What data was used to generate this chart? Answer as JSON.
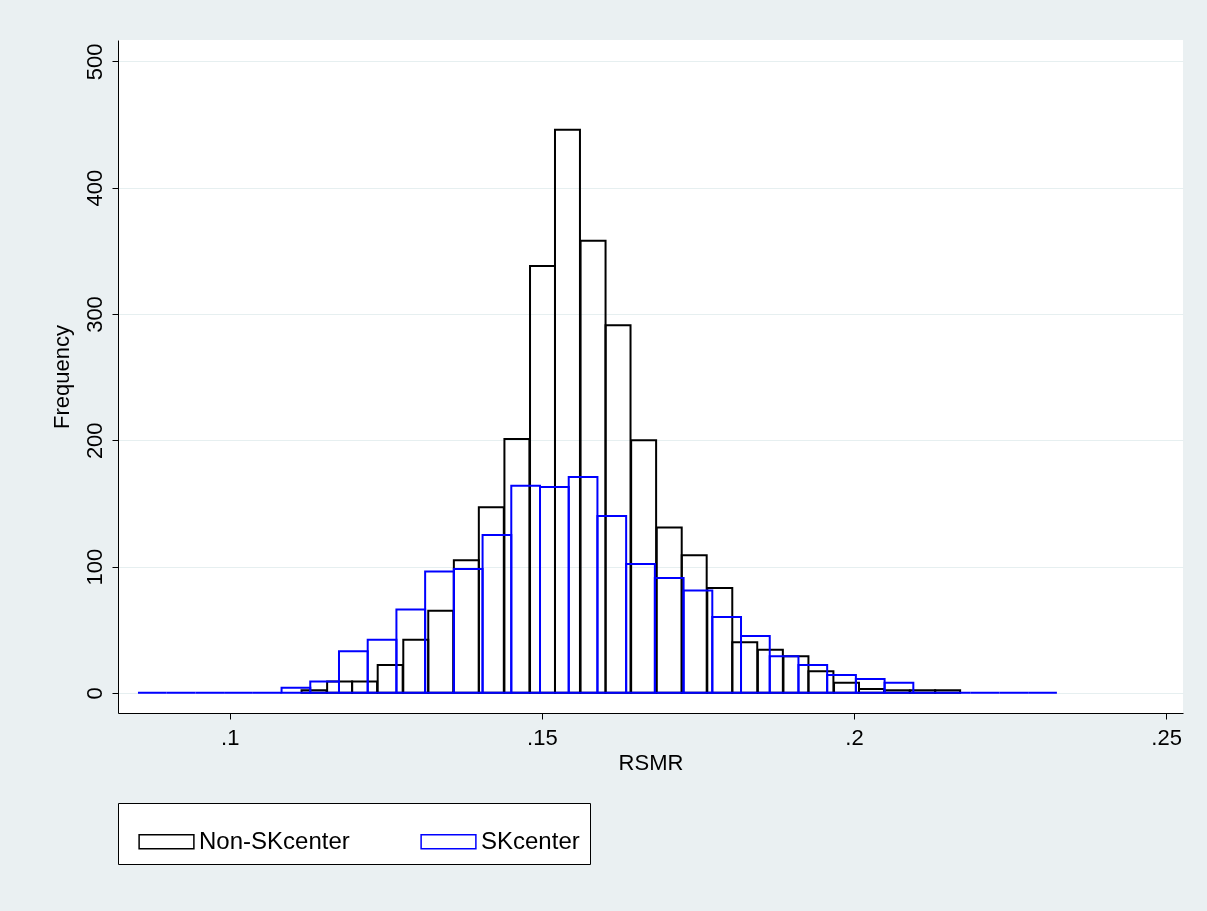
{
  "chart_data": {
    "type": "bar",
    "xlabel": "RSMR",
    "ylabel": "Frequency",
    "xlim": [
      0.0821,
      0.2527
    ],
    "xticks": [
      {
        "value": 0.1,
        "label": ".1"
      },
      {
        "value": 0.15,
        "label": ".15"
      },
      {
        "value": 0.2,
        "label": ".2"
      },
      {
        "value": 0.25,
        "label": ".25"
      }
    ],
    "ylim": [
      -16,
      517
    ],
    "yticks": [
      0,
      100,
      200,
      300,
      400,
      500
    ],
    "grid": "y",
    "legend": "bottom",
    "series": [
      {
        "name": "Non-SKcenter",
        "color": "#000000",
        "x": [
          0.1135,
          0.1176,
          0.1216,
          0.1257,
          0.1298,
          0.1338,
          0.1379,
          0.1419,
          0.146,
          0.1501,
          0.1541,
          0.1582,
          0.1622,
          0.1663,
          0.1704,
          0.1744,
          0.1785,
          0.1825,
          0.1866,
          0.1907,
          0.1947,
          0.1988,
          0.2028,
          0.2069,
          0.211,
          0.215
        ],
        "values": [
          2,
          9,
          9,
          22,
          42,
          65,
          105,
          147,
          201,
          338,
          446,
          358,
          291,
          200,
          131,
          109,
          83,
          40,
          34,
          29,
          17,
          8,
          3,
          2,
          2,
          2
        ]
      },
      {
        "name": "SKcenter",
        "color": "#0000ff",
        "x": [
          0.0876,
          0.0922,
          0.0968,
          0.1014,
          0.106,
          0.1106,
          0.1152,
          0.1198,
          0.1244,
          0.129,
          0.1336,
          0.1382,
          0.1428,
          0.1474,
          0.152,
          0.1566,
          0.1612,
          0.1658,
          0.1704,
          0.175,
          0.1796,
          0.1842,
          0.1888,
          0.1934,
          0.198,
          0.2026,
          0.2072,
          0.2118,
          0.2164,
          0.221,
          0.2256,
          0.2302
        ],
        "values": [
          0,
          0,
          0,
          0,
          0,
          4,
          9,
          33,
          42,
          66,
          96,
          98,
          125,
          164,
          163,
          171,
          140,
          102,
          91,
          81,
          60,
          45,
          29,
          22,
          14,
          11,
          8,
          0,
          0,
          0,
          0,
          0
        ]
      }
    ]
  }
}
